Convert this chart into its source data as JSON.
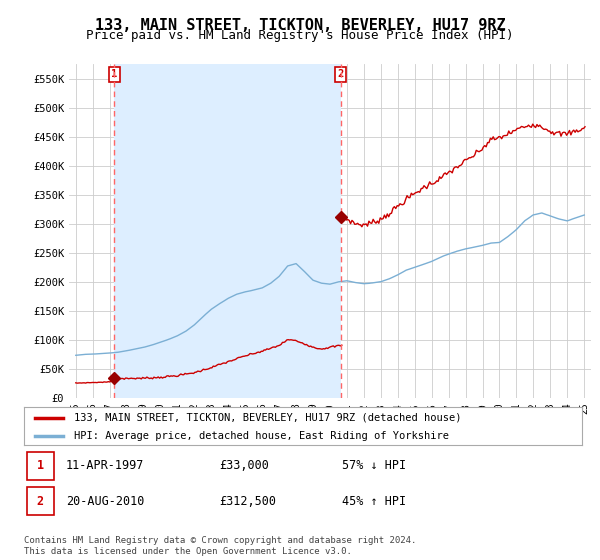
{
  "title": "133, MAIN STREET, TICKTON, BEVERLEY, HU17 9RZ",
  "subtitle": "Price paid vs. HM Land Registry's House Price Index (HPI)",
  "ylim": [
    0,
    575000
  ],
  "yticks": [
    0,
    50000,
    100000,
    150000,
    200000,
    250000,
    300000,
    350000,
    400000,
    450000,
    500000,
    550000
  ],
  "ytick_labels": [
    "£0",
    "£50K",
    "£100K",
    "£150K",
    "£200K",
    "£250K",
    "£300K",
    "£350K",
    "£400K",
    "£450K",
    "£500K",
    "£550K"
  ],
  "sale1": {
    "date": 1997.28,
    "price": 33000,
    "label": "1",
    "date_str": "11-APR-1997",
    "price_str": "£33,000",
    "hpi_str": "57% ↓ HPI"
  },
  "sale2": {
    "date": 2010.63,
    "price": 312500,
    "label": "2",
    "date_str": "20-AUG-2010",
    "price_str": "£312,500",
    "hpi_str": "45% ↑ HPI"
  },
  "red_line_color": "#cc0000",
  "blue_line_color": "#7bafd4",
  "marker_color": "#990000",
  "vline_color": "#ff6666",
  "background_color": "#ffffff",
  "shaded_color": "#ddeeff",
  "grid_color": "#cccccc",
  "legend_label_red": "133, MAIN STREET, TICKTON, BEVERLEY, HU17 9RZ (detached house)",
  "legend_label_blue": "HPI: Average price, detached house, East Riding of Yorkshire",
  "footer": "Contains HM Land Registry data © Crown copyright and database right 2024.\nThis data is licensed under the Open Government Licence v3.0.",
  "title_fontsize": 11,
  "subtitle_fontsize": 9
}
